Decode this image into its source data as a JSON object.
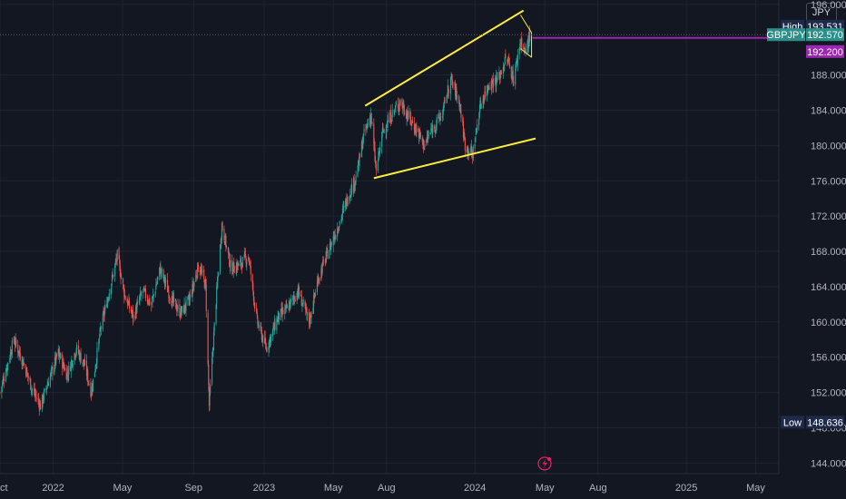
{
  "header": {
    "currency": "JPY"
  },
  "chart_data": {
    "type": "candlestick",
    "symbol": "GBPJPY",
    "title": "",
    "xlabel": "",
    "ylabel": "",
    "colors": {
      "up": "#26a69a",
      "down": "#ef5350",
      "background": "#131722",
      "grid": "#1f2430",
      "axis_text": "#b2b5be",
      "trendline": "#ffeb3b",
      "target_line": "#9c27b0",
      "price_label": "#2b8f8a",
      "marker_label": "#1e2a4a"
    },
    "y_axis": {
      "min": 142.8,
      "max": 196.5,
      "ticks": [
        "196.000",
        "188.000",
        "184.000",
        "180.000",
        "176.000",
        "172.000",
        "168.000",
        "164.000",
        "160.000",
        "156.000",
        "152.000",
        "148.000",
        "144.000"
      ],
      "tick_values": [
        196,
        188,
        184,
        180,
        176,
        172,
        168,
        164,
        160,
        156,
        152,
        148,
        144
      ]
    },
    "x_axis": {
      "start": "2021-10-01",
      "end": "2025-06-10",
      "ticks": [
        {
          "label": "Oct",
          "date": "2021-10-01"
        },
        {
          "label": "2022",
          "date": "2022-01-01"
        },
        {
          "label": "May",
          "date": "2022-05-01"
        },
        {
          "label": "Sep",
          "date": "2022-09-01"
        },
        {
          "label": "2023",
          "date": "2023-01-01"
        },
        {
          "label": "May",
          "date": "2023-05-01"
        },
        {
          "label": "Aug",
          "date": "2023-08-01"
        },
        {
          "label": "2024",
          "date": "2024-01-01"
        },
        {
          "label": "May",
          "date": "2024-05-01"
        },
        {
          "label": "Aug",
          "date": "2024-08-01"
        },
        {
          "label": "2025",
          "date": "2025-01-01"
        },
        {
          "label": "May",
          "date": "2025-05-01"
        }
      ]
    },
    "series_path": [
      [
        "2021-10-01",
        152.0
      ],
      [
        "2021-10-15",
        155.5
      ],
      [
        "2021-10-25",
        158.0
      ],
      [
        "2021-11-10",
        155.5
      ],
      [
        "2021-11-25",
        152.5
      ],
      [
        "2021-12-10",
        150.5
      ],
      [
        "2021-12-25",
        153.5
      ],
      [
        "2022-01-10",
        156.5
      ],
      [
        "2022-01-25",
        154.0
      ],
      [
        "2022-02-10",
        157.0
      ],
      [
        "2022-02-25",
        155.0
      ],
      [
        "2022-03-08",
        152.0
      ],
      [
        "2022-03-25",
        159.5
      ],
      [
        "2022-04-10",
        164.0
      ],
      [
        "2022-04-22",
        167.5
      ],
      [
        "2022-05-05",
        163.0
      ],
      [
        "2022-05-20",
        160.5
      ],
      [
        "2022-06-05",
        163.5
      ],
      [
        "2022-06-20",
        162.0
      ],
      [
        "2022-07-05",
        166.0
      ],
      [
        "2022-07-25",
        162.5
      ],
      [
        "2022-08-10",
        161.0
      ],
      [
        "2022-08-25",
        162.5
      ],
      [
        "2022-09-10",
        166.5
      ],
      [
        "2022-09-22",
        164.0
      ],
      [
        "2022-09-28",
        150.5
      ],
      [
        "2022-10-10",
        162.5
      ],
      [
        "2022-10-20",
        171.0
      ],
      [
        "2022-11-05",
        166.0
      ],
      [
        "2022-11-20",
        166.5
      ],
      [
        "2022-12-05",
        167.5
      ],
      [
        "2022-12-20",
        160.0
      ],
      [
        "2023-01-05",
        157.0
      ],
      [
        "2023-01-25",
        160.5
      ],
      [
        "2023-02-10",
        161.5
      ],
      [
        "2023-03-01",
        163.5
      ],
      [
        "2023-03-20",
        160.0
      ],
      [
        "2023-04-05",
        165.0
      ],
      [
        "2023-04-25",
        168.5
      ],
      [
        "2023-05-10",
        171.0
      ],
      [
        "2023-05-25",
        174.0
      ],
      [
        "2023-06-10",
        176.5
      ],
      [
        "2023-06-22",
        181.0
      ],
      [
        "2023-07-05",
        183.5
      ],
      [
        "2023-07-14",
        177.0
      ],
      [
        "2023-07-25",
        181.5
      ],
      [
        "2023-08-10",
        183.5
      ],
      [
        "2023-08-25",
        185.0
      ],
      [
        "2023-09-10",
        183.0
      ],
      [
        "2023-09-25",
        181.5
      ],
      [
        "2023-10-05",
        180.0
      ],
      [
        "2023-10-20",
        182.0
      ],
      [
        "2023-11-05",
        183.5
      ],
      [
        "2023-11-20",
        187.5
      ],
      [
        "2023-12-05",
        185.0
      ],
      [
        "2023-12-15",
        180.0
      ],
      [
        "2023-12-28",
        179.0
      ],
      [
        "2024-01-10",
        184.5
      ],
      [
        "2024-01-25",
        187.0
      ],
      [
        "2024-02-10",
        187.5
      ],
      [
        "2024-02-25",
        190.0
      ],
      [
        "2024-03-08",
        187.5
      ],
      [
        "2024-03-20",
        192.0
      ],
      [
        "2024-03-28",
        190.5
      ],
      [
        "2024-04-05",
        192.57
      ]
    ],
    "high": {
      "label": "High",
      "value": "193.531"
    },
    "low": {
      "label": "Low",
      "value": "148.636"
    },
    "last_price": {
      "symbol": "GBPJPY",
      "value": "192.570",
      "numeric": 192.57
    },
    "target": {
      "value": "192.200",
      "numeric": 192.2
    },
    "annotations": {
      "channel_upper": [
        [
          "2023-06-25",
          184.5
        ],
        [
          "2024-03-25",
          195.3
        ]
      ],
      "channel_lower": [
        [
          "2023-07-10",
          176.3
        ],
        [
          "2024-04-15",
          180.8
        ]
      ],
      "wedge_top": [
        [
          "2024-03-20",
          194.8
        ],
        [
          "2024-04-08",
          192.8
        ]
      ],
      "wedge_bottom": [
        [
          "2024-03-20",
          191.0
        ],
        [
          "2024-04-08",
          190.0
        ]
      ],
      "target_line_start": "2024-04-10"
    }
  }
}
